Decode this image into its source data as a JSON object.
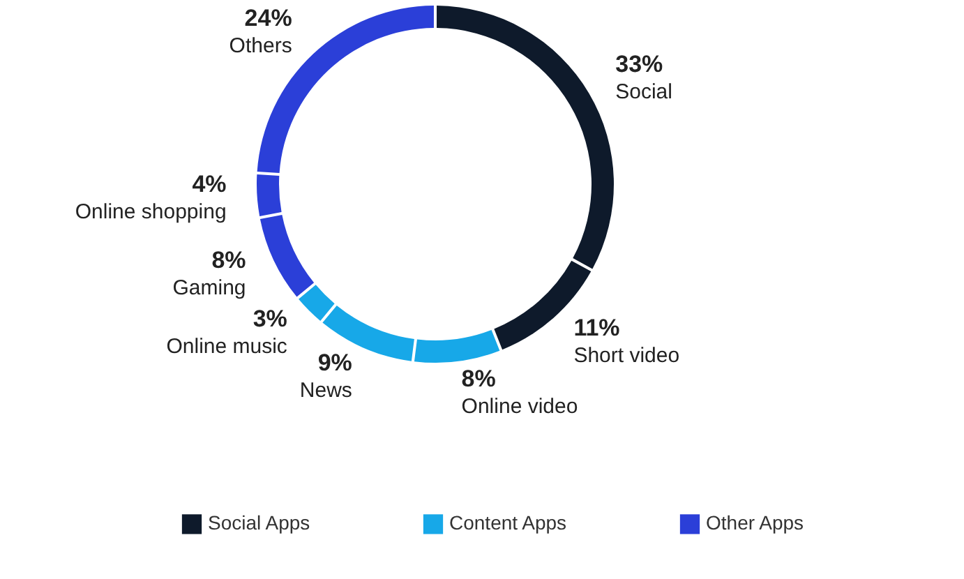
{
  "chart_data": {
    "type": "donut",
    "categories": [
      "Social",
      "Short video",
      "Online video",
      "News",
      "Online music",
      "Gaming",
      "Online shopping",
      "Others"
    ],
    "values": [
      33,
      11,
      8,
      9,
      3,
      8,
      4,
      24
    ],
    "colors": [
      "#0e1a2b",
      "#0e1a2b",
      "#17a8e8",
      "#17a8e8",
      "#17a8e8",
      "#2b3fd8",
      "#2b3fd8",
      "#2b3fd8"
    ],
    "value_labels": [
      "33%",
      "11%",
      "8%",
      "9%",
      "3%",
      "8%",
      "4%",
      "24%"
    ],
    "annotations": [
      "Social Apps",
      "Content Apps",
      "Other Apps"
    ]
  }
}
